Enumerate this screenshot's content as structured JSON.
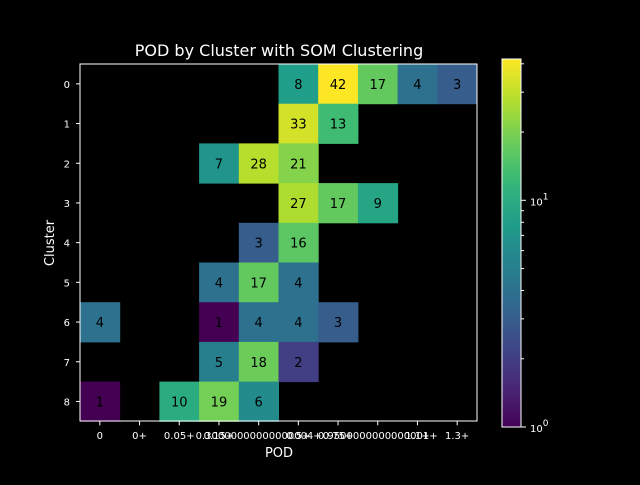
{
  "chart_data": {
    "type": "heatmap",
    "title": "POD by Cluster with SOM Clustering",
    "xlabel": "POD",
    "ylabel": "Cluster",
    "x_categories": [
      "0",
      "0+",
      "0.05+",
      "0.15+",
      "0.30000000000000004+",
      "0.5+",
      "0.75+",
      "0.9500000000000001+",
      "1.1+",
      "1.3+"
    ],
    "x_tick_labels": [
      "0",
      "0+",
      "0.05+",
      "0.15+",
      "0.30000000000000004+",
      "0.5+",
      "0.75+",
      "0.9500000000000001+",
      "1.1+",
      "1.3+"
    ],
    "y_categories": [
      "0",
      "1",
      "2",
      "3",
      "4",
      "5",
      "6",
      "7",
      "8"
    ],
    "values": [
      [
        null,
        null,
        null,
        null,
        null,
        8,
        42,
        17,
        4,
        3
      ],
      [
        null,
        null,
        null,
        null,
        null,
        33,
        13,
        null,
        null,
        null
      ],
      [
        null,
        null,
        null,
        7,
        28,
        21,
        null,
        null,
        null,
        null
      ],
      [
        null,
        null,
        null,
        null,
        null,
        27,
        17,
        9,
        null,
        null
      ],
      [
        null,
        null,
        null,
        null,
        3,
        16,
        null,
        null,
        null,
        null
      ],
      [
        null,
        null,
        null,
        4,
        17,
        4,
        null,
        null,
        null,
        null
      ],
      [
        4,
        null,
        null,
        1,
        4,
        4,
        3,
        null,
        null,
        null
      ],
      [
        null,
        null,
        null,
        5,
        18,
        2,
        null,
        null,
        null,
        null
      ],
      [
        1,
        null,
        10,
        19,
        6,
        null,
        null,
        null,
        null,
        null
      ]
    ],
    "colorbar": {
      "scale": "log",
      "colormap": "viridis",
      "vmin": 1,
      "vmax": 42,
      "ticks": [
        1,
        10
      ],
      "tick_labels": [
        "10^0",
        "10^1"
      ]
    },
    "background": "#000000",
    "grid": false
  }
}
